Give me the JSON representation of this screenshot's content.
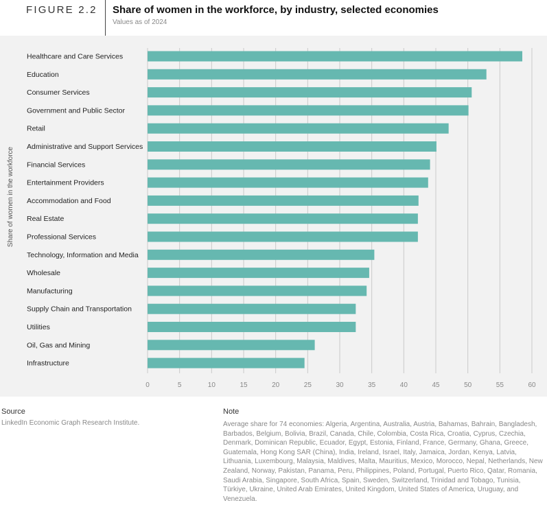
{
  "header": {
    "figure_label": "FIGURE 2.2",
    "title": "Share of women in the workforce, by industry, selected economies",
    "subtitle": "Values as of 2024"
  },
  "chart_data": {
    "type": "bar",
    "orientation": "horizontal",
    "ylabel": "Share of women in the workforce",
    "xlabel": "",
    "xlim": [
      0,
      60
    ],
    "xticks": [
      "0",
      "5",
      "10",
      "15",
      "20",
      "25",
      "30",
      "35",
      "40",
      "45",
      "50",
      "55",
      "60"
    ],
    "grid": "vertical",
    "bar_color": "#66b8b0",
    "categories": [
      "Healthcare and Care Services",
      "Education",
      "Consumer Services",
      "Government and Public Sector",
      "Retail",
      "Administrative and Support Services",
      "Financial Services",
      "Entertainment Providers",
      "Accommodation and Food",
      "Real Estate",
      "Professional Services",
      "Technology, Information and Media",
      "Wholesale",
      "Manufacturing",
      "Supply Chain and Transportation",
      "Utilities",
      "Oil, Gas and Mining",
      "Infrastructure"
    ],
    "values": [
      58.5,
      52.9,
      50.6,
      50.1,
      47.0,
      45.1,
      44.1,
      43.8,
      42.3,
      42.2,
      42.2,
      35.4,
      34.6,
      34.2,
      32.5,
      32.5,
      26.1,
      24.5
    ]
  },
  "footer": {
    "source_heading": "Source",
    "source_text": "LinkedIn Economic Graph Research Institute.",
    "note_heading": "Note",
    "note_text": "Average share for 74 economies: Algeria, Argentina, Australia, Austria, Bahamas, Bahrain, Bangladesh, Barbados, Belgium, Bolivia, Brazil, Canada, Chile, Colombia, Costa Rica, Croatia, Cyprus, Czechia, Denmark, Dominican Republic, Ecuador, Egypt, Estonia, Finland, France, Germany, Ghana, Greece, Guatemala, Hong Kong SAR (China), India, Ireland, Israel, Italy, Jamaica, Jordan, Kenya, Latvia, Lithuania, Luxembourg, Malaysia, Maldives, Malta, Mauritius, Mexico, Morocco, Nepal, Netherlands, New Zealand, Norway, Pakistan, Panama, Peru, Philippines, Poland, Portugal, Puerto Rico, Qatar, Romania, Saudi Arabia, Singapore, South Africa, Spain, Sweden, Switzerland, Trinidad and Tobago, Tunisia, Türkiye, Ukraine, United Arab Emirates, United Kingdom, United States of America, Uruguay, and Venezuela."
  }
}
